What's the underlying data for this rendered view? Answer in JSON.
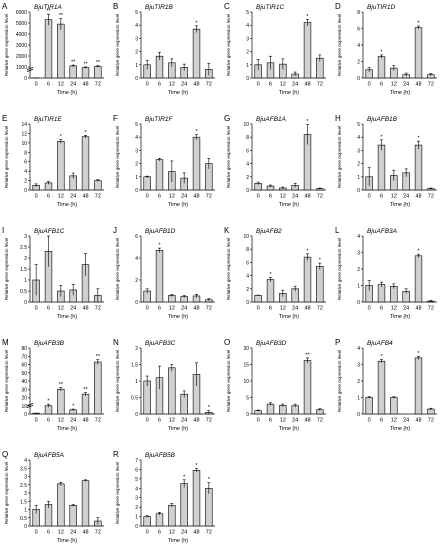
{
  "figure": {
    "xlabel": "Time (h)",
    "ylabel": "Relative gene expression level",
    "categories": [
      "0",
      "6",
      "12",
      "24",
      "48",
      "72"
    ]
  },
  "chart_data": [
    {
      "letter": "A",
      "title": "BjuTIR1A",
      "type": "bar",
      "categories": [
        "0",
        "6",
        "12",
        "24",
        "48",
        "72"
      ],
      "values": [
        1,
        5300,
        4900,
        1100,
        950,
        1050
      ],
      "errors": [
        0.7,
        500,
        500,
        80,
        60,
        80
      ],
      "sig": [
        "",
        "**",
        "**",
        "**",
        "**",
        "**"
      ],
      "ylim": [
        0,
        6000
      ],
      "ticks": [
        0,
        1000,
        2000,
        3000,
        4000,
        5000,
        6000
      ],
      "broken": true,
      "low_ticks": [
        0,
        3
      ]
    },
    {
      "letter": "B",
      "title": "BjuTIR1B",
      "type": "bar",
      "categories": [
        "0",
        "6",
        "12",
        "24",
        "48",
        "72"
      ],
      "values": [
        1.0,
        1.65,
        1.15,
        0.8,
        3.7,
        0.65
      ],
      "errors": [
        0.35,
        0.3,
        0.3,
        0.25,
        0.25,
        0.45
      ],
      "sig": [
        "",
        "",
        "",
        "",
        "*",
        ""
      ],
      "ylim": [
        0,
        5
      ],
      "ticks": [
        0,
        1,
        2,
        3,
        4,
        5
      ]
    },
    {
      "letter": "C",
      "title": "BjuTIR1C",
      "type": "bar",
      "categories": [
        "0",
        "6",
        "12",
        "24",
        "48",
        "72"
      ],
      "values": [
        1.0,
        1.15,
        1.05,
        0.3,
        4.2,
        1.5
      ],
      "errors": [
        0.4,
        0.5,
        0.4,
        0.15,
        0.25,
        0.25
      ],
      "sig": [
        "",
        "",
        "",
        "",
        "*",
        ""
      ],
      "ylim": [
        0,
        5
      ],
      "ticks": [
        0,
        1,
        2,
        3,
        4,
        5
      ]
    },
    {
      "letter": "D",
      "title": "BjuTIR1D",
      "type": "bar",
      "categories": [
        "0",
        "6",
        "12",
        "24",
        "48",
        "72"
      ],
      "values": [
        1.0,
        2.6,
        1.2,
        0.4,
        6.1,
        0.4
      ],
      "errors": [
        0.25,
        0.2,
        0.3,
        0.2,
        0.2,
        0.15
      ],
      "sig": [
        "",
        "*",
        "",
        "",
        "*",
        ""
      ],
      "ylim": [
        0,
        8
      ],
      "ticks": [
        0,
        2,
        4,
        6,
        8
      ]
    },
    {
      "letter": "E",
      "title": "BjuTIR1E",
      "type": "bar",
      "categories": [
        "0",
        "6",
        "12",
        "24",
        "48",
        "72"
      ],
      "values": [
        1.0,
        1.5,
        10.3,
        3.0,
        11.3,
        2.0
      ],
      "errors": [
        0.3,
        0.3,
        0.4,
        0.6,
        0.3,
        0.2
      ],
      "sig": [
        "",
        "",
        "*",
        "",
        "*",
        ""
      ],
      "ylim": [
        0,
        14
      ],
      "ticks": [
        0,
        2,
        4,
        6,
        8,
        10,
        12,
        14
      ]
    },
    {
      "letter": "F",
      "title": "BjuTIR1F",
      "type": "bar",
      "categories": [
        "0",
        "6",
        "12",
        "24",
        "48",
        "72"
      ],
      "values": [
        1.0,
        2.3,
        1.4,
        0.9,
        4.0,
        2.0
      ],
      "errors": [
        0.05,
        0.1,
        0.8,
        0.4,
        0.2,
        0.4
      ],
      "sig": [
        "",
        "",
        "",
        "",
        "*",
        ""
      ],
      "ylim": [
        0,
        5
      ],
      "ticks": [
        0,
        1,
        2,
        3,
        4,
        5
      ]
    },
    {
      "letter": "G",
      "title": "BjuAFB1A",
      "type": "bar",
      "categories": [
        "0",
        "6",
        "12",
        "24",
        "48",
        "72"
      ],
      "values": [
        1.0,
        0.6,
        0.3,
        0.7,
        8.4,
        0.2
      ],
      "errors": [
        0.2,
        0.15,
        0.15,
        0.3,
        1.5,
        0.1
      ],
      "sig": [
        "",
        "",
        "",
        "",
        "*",
        ""
      ],
      "ylim": [
        0,
        10
      ],
      "ticks": [
        0,
        2,
        4,
        6,
        8,
        10
      ]
    },
    {
      "letter": "H",
      "title": "BjuAFB1B",
      "type": "bar",
      "categories": [
        "0",
        "6",
        "12",
        "24",
        "48",
        "72"
      ],
      "values": [
        1.0,
        3.4,
        1.1,
        1.3,
        3.4,
        0.1
      ],
      "errors": [
        0.7,
        0.4,
        0.4,
        0.3,
        0.3,
        0.05
      ],
      "sig": [
        "",
        "*",
        "",
        "",
        "*",
        ""
      ],
      "ylim": [
        0,
        5
      ],
      "ticks": [
        0,
        1,
        2,
        3,
        4,
        5
      ]
    },
    {
      "letter": "I",
      "title": "BjuAFB1C",
      "type": "bar",
      "categories": [
        "0",
        "6",
        "12",
        "24",
        "48",
        "72"
      ],
      "values": [
        1.0,
        2.3,
        0.5,
        0.55,
        1.7,
        0.3
      ],
      "errors": [
        0.7,
        0.7,
        0.25,
        0.25,
        0.5,
        0.3
      ],
      "sig": [
        "",
        "",
        "",
        "",
        "",
        ""
      ],
      "ylim": [
        0,
        3
      ],
      "ticks": [
        0,
        0.5,
        1,
        1.5,
        2,
        2.5,
        3
      ]
    },
    {
      "letter": "J",
      "title": "BjuAFB1D",
      "type": "bar",
      "categories": [
        "0",
        "6",
        "12",
        "24",
        "48",
        "72"
      ],
      "values": [
        1.0,
        4.7,
        0.6,
        0.5,
        0.55,
        0.2
      ],
      "errors": [
        0.2,
        0.2,
        0.1,
        0.1,
        0.15,
        0.1
      ],
      "sig": [
        "",
        "*",
        "",
        "",
        "",
        ""
      ],
      "ylim": [
        0,
        6
      ],
      "ticks": [
        0,
        2,
        4,
        6
      ]
    },
    {
      "letter": "K",
      "title": "BjuAFB2",
      "type": "bar",
      "categories": [
        "0",
        "6",
        "12",
        "24",
        "48",
        "72"
      ],
      "values": [
        1.0,
        3.4,
        1.3,
        2.0,
        6.8,
        5.4
      ],
      "errors": [
        0.05,
        0.35,
        0.5,
        0.4,
        0.5,
        0.5
      ],
      "sig": [
        "",
        "*",
        "",
        "",
        "*",
        "*"
      ],
      "ylim": [
        0,
        10
      ],
      "ticks": [
        0,
        2,
        4,
        6,
        8,
        10
      ]
    },
    {
      "letter": "L",
      "title": "BjuAFB3A",
      "type": "bar",
      "categories": [
        "0",
        "6",
        "12",
        "24",
        "48",
        "72"
      ],
      "values": [
        1.0,
        1.05,
        0.95,
        0.65,
        2.8,
        0.05
      ],
      "errors": [
        0.3,
        0.15,
        0.15,
        0.15,
        0.1,
        0.05
      ],
      "sig": [
        "",
        "",
        "",
        "",
        "*",
        ""
      ],
      "ylim": [
        0,
        4
      ],
      "ticks": [
        0,
        1,
        2,
        3,
        4
      ]
    },
    {
      "letter": "M",
      "title": "BjuAFB3B",
      "type": "bar",
      "categories": [
        "0",
        "6",
        "12",
        "24",
        "48",
        "72"
      ],
      "values": [
        1,
        10,
        30,
        5,
        24,
        63
      ],
      "errors": [
        0.1,
        2,
        2,
        1,
        2,
        3
      ],
      "sig": [
        "",
        "*",
        "**",
        "*",
        "**",
        "**"
      ],
      "ylim": [
        0,
        80
      ],
      "ticks": [
        0,
        10,
        20,
        30,
        40,
        50,
        60,
        70,
        80
      ],
      "broken": true,
      "low_ticks": [
        0,
        1,
        2
      ]
    },
    {
      "letter": "N",
      "title": "BjuAFB3C",
      "type": "bar",
      "categories": [
        "0",
        "6",
        "12",
        "24",
        "48",
        "72"
      ],
      "values": [
        1.0,
        1.1,
        1.4,
        0.6,
        1.2,
        0.05
      ],
      "errors": [
        0.15,
        0.35,
        0.1,
        0.1,
        0.35,
        0.05
      ],
      "sig": [
        "",
        "",
        "",
        "",
        "",
        "*"
      ],
      "ylim": [
        0,
        2
      ],
      "ticks": [
        0,
        0.5,
        1,
        1.5,
        2
      ]
    },
    {
      "letter": "O",
      "title": "BjuAFB3D",
      "type": "bar",
      "categories": [
        "0",
        "6",
        "12",
        "24",
        "48",
        "72"
      ],
      "values": [
        1.0,
        3.0,
        2.6,
        2.5,
        16.2,
        1.3
      ],
      "errors": [
        0.2,
        0.4,
        0.4,
        0.5,
        0.8,
        0.3
      ],
      "sig": [
        "",
        "",
        "",
        "",
        "**",
        ""
      ],
      "ylim": [
        0,
        20
      ],
      "ticks": [
        0,
        5,
        10,
        15,
        20
      ]
    },
    {
      "letter": "P",
      "title": "BjuAFB4",
      "type": "bar",
      "categories": [
        "0",
        "6",
        "12",
        "24",
        "48",
        "72"
      ],
      "values": [
        1.0,
        3.2,
        1.0,
        0.0,
        3.4,
        0.3
      ],
      "errors": [
        0.05,
        0.1,
        0.05,
        0,
        0.1,
        0.05
      ],
      "sig": [
        "",
        "*",
        "",
        "",
        "*",
        ""
      ],
      "ylim": [
        0,
        4
      ],
      "ticks": [
        0,
        1,
        2,
        3,
        4
      ]
    },
    {
      "letter": "Q",
      "title": "BjuAFB5A",
      "type": "bar",
      "categories": [
        "0",
        "6",
        "12",
        "24",
        "48",
        "72"
      ],
      "values": [
        1.0,
        1.3,
        2.55,
        1.25,
        2.75,
        0.3
      ],
      "errors": [
        0.25,
        0.2,
        0.1,
        0.05,
        0.05,
        0.2
      ],
      "sig": [
        "",
        "",
        "",
        "",
        "",
        ""
      ],
      "ylim": [
        0,
        4
      ],
      "ticks": [
        0,
        0.5,
        1,
        1.5,
        2,
        2.5,
        3,
        3.5,
        4
      ]
    },
    {
      "letter": "R",
      "title": "BjuAFB5B",
      "type": "bar",
      "categories": [
        "0",
        "6",
        "12",
        "24",
        "48",
        "72"
      ],
      "values": [
        1.0,
        1.3,
        2.2,
        4.5,
        5.9,
        4.0
      ],
      "errors": [
        0.1,
        0.15,
        0.2,
        0.4,
        0.2,
        0.6
      ],
      "sig": [
        "",
        "",
        "",
        "*",
        "*",
        "*"
      ],
      "ylim": [
        0,
        7
      ],
      "ticks": [
        0,
        1,
        2,
        3,
        4,
        5,
        6,
        7
      ]
    }
  ]
}
